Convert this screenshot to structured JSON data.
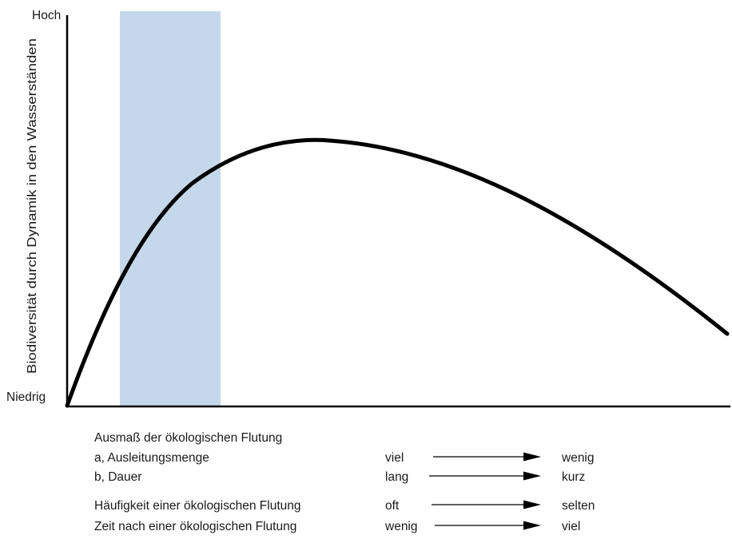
{
  "y_axis": {
    "title": "Biodiversität durch Dynamik in den Wasserständen",
    "high_label": "Hoch",
    "low_label": "Niedrig"
  },
  "colors": {
    "highlight_band": "#c5d7ea",
    "curve": "#000000",
    "axis": "#000000"
  },
  "legend": {
    "heading": "Ausmaß der ökologischen Flutung",
    "rows": [
      {
        "label": "a, Ausleitungsmenge",
        "from": "viel",
        "to": "wenig"
      },
      {
        "label": "b, Dauer",
        "from": "lang",
        "to": "kurz"
      },
      {
        "label": "Häufigkeit einer ökologischen Flutung",
        "from": "oft",
        "to": "selten"
      },
      {
        "label": "Zeit nach einer ökologischen Flutung",
        "from": "wenig",
        "to": "viel"
      }
    ]
  }
}
